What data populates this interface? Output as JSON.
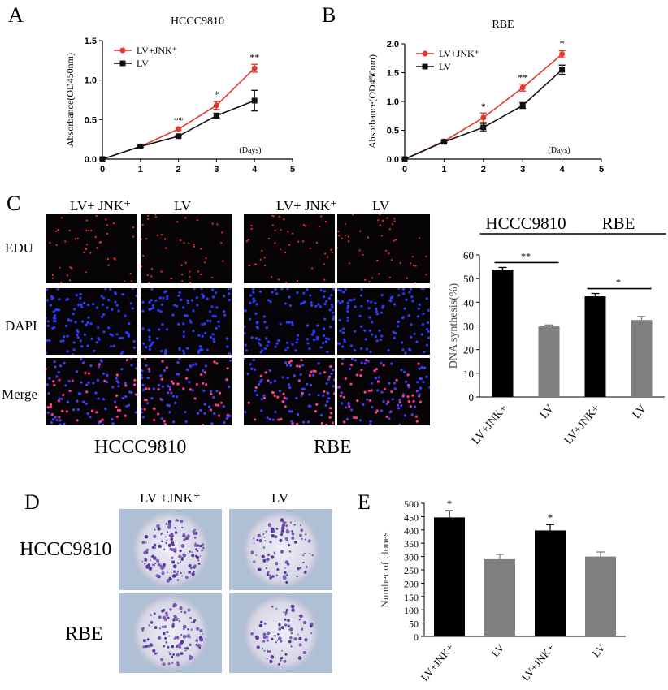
{
  "panels": {
    "A": "A",
    "B": "B",
    "C": "C",
    "D": "D",
    "E": "E"
  },
  "chart_data": [
    {
      "id": "A",
      "type": "line",
      "title": "HCCC9810",
      "ylabel": "Absorbance(OD450nm)",
      "xlabel": "(Days)",
      "xlim": [
        0,
        5
      ],
      "ylim": [
        0,
        1.5
      ],
      "xticks": [
        "0",
        "1",
        "2",
        "3",
        "4",
        "5"
      ],
      "yticks": [
        "0.0",
        "0.5",
        "1.0",
        "1.5"
      ],
      "series": [
        {
          "name": "LV+JNK⁺",
          "color": "#e03a2f",
          "x": [
            0,
            1,
            2,
            3,
            4
          ],
          "y": [
            0.0,
            0.16,
            0.38,
            0.68,
            1.15
          ],
          "err": [
            0,
            0.01,
            0.015,
            0.05,
            0.05
          ]
        },
        {
          "name": "LV",
          "color": "#111111",
          "x": [
            0,
            1,
            2,
            3,
            4
          ],
          "y": [
            0.0,
            0.16,
            0.29,
            0.55,
            0.74
          ],
          "err": [
            0,
            0.01,
            0.015,
            0.03,
            0.13
          ]
        }
      ],
      "annotations": [
        {
          "x": 2,
          "y": 0.45,
          "text": "**"
        },
        {
          "x": 3,
          "y": 0.78,
          "text": "*"
        },
        {
          "x": 4,
          "y": 1.25,
          "text": "**"
        }
      ]
    },
    {
      "id": "B",
      "type": "line",
      "title": "RBE",
      "ylabel": "Absorbance(OD450nm)",
      "xlabel": "(Days)",
      "xlim": [
        0,
        5
      ],
      "ylim": [
        0,
        2.0
      ],
      "xticks": [
        "0",
        "1",
        "2",
        "3",
        "4",
        "5"
      ],
      "yticks": [
        "0.0",
        "0.5",
        "1.0",
        "1.5",
        "2.0"
      ],
      "series": [
        {
          "name": "LV+JNK⁺",
          "color": "#e03a2f",
          "x": [
            0,
            1,
            2,
            3,
            4
          ],
          "y": [
            0.0,
            0.31,
            0.72,
            1.24,
            1.82
          ],
          "err": [
            0,
            0.02,
            0.08,
            0.06,
            0.06
          ]
        },
        {
          "name": "LV",
          "color": "#111111",
          "x": [
            0,
            1,
            2,
            3,
            4
          ],
          "y": [
            0.0,
            0.3,
            0.55,
            0.93,
            1.55
          ],
          "err": [
            0,
            0.02,
            0.07,
            0.05,
            0.08
          ]
        }
      ],
      "annotations": [
        {
          "x": 2,
          "y": 0.86,
          "text": "*"
        },
        {
          "x": 3,
          "y": 1.36,
          "text": "**"
        },
        {
          "x": 4,
          "y": 1.95,
          "text": "*"
        }
      ]
    },
    {
      "id": "C",
      "type": "bar",
      "ylabel": "DNA synthesis(%)",
      "groups": [
        "HCCC9810",
        "RBE"
      ],
      "categories": [
        "LV+JNK+",
        "LV",
        "LV+JNK+",
        "LV"
      ],
      "values": [
        53.5,
        29.8,
        42.5,
        32.5
      ],
      "errors": [
        1.2,
        0.6,
        1.2,
        1.5
      ],
      "colors": [
        "#000000",
        "#7f7f7f",
        "#000000",
        "#7f7f7f"
      ],
      "ylim": [
        0,
        60
      ],
      "yticks": [
        "0",
        "10",
        "20",
        "30",
        "40",
        "50",
        "60"
      ],
      "significance": [
        {
          "from": 0,
          "to": 1,
          "text": "**"
        },
        {
          "from": 2,
          "to": 3,
          "text": "*"
        }
      ]
    },
    {
      "id": "E",
      "type": "bar",
      "ylabel": "Number of clones",
      "categories": [
        "LV+JNK+",
        "LV",
        "LV+JNK+",
        "LV"
      ],
      "values": [
        447,
        290,
        398,
        300
      ],
      "errors": [
        25,
        18,
        22,
        17
      ],
      "colors": [
        "#000000",
        "#7f7f7f",
        "#000000",
        "#7f7f7f"
      ],
      "ylim": [
        0,
        500
      ],
      "yticks": [
        "0",
        "50",
        "100",
        "150",
        "200",
        "250",
        "300",
        "350",
        "400",
        "450",
        "500"
      ],
      "annotations": [
        {
          "index": 0,
          "text": "*"
        },
        {
          "index": 2,
          "text": "*"
        }
      ]
    }
  ],
  "panelC": {
    "left_cols": [
      "LV+ JNK⁺",
      "LV"
    ],
    "right_cols": [
      "LV+ JNK⁺",
      "LV"
    ],
    "rows": [
      "EDU",
      "DAPI",
      "Merge"
    ],
    "left_title": "HCCC9810",
    "right_title": "RBE"
  },
  "panelD": {
    "cols": [
      "LV +JNK⁺",
      "LV"
    ],
    "rows": [
      "HCCC9810",
      "RBE"
    ]
  }
}
